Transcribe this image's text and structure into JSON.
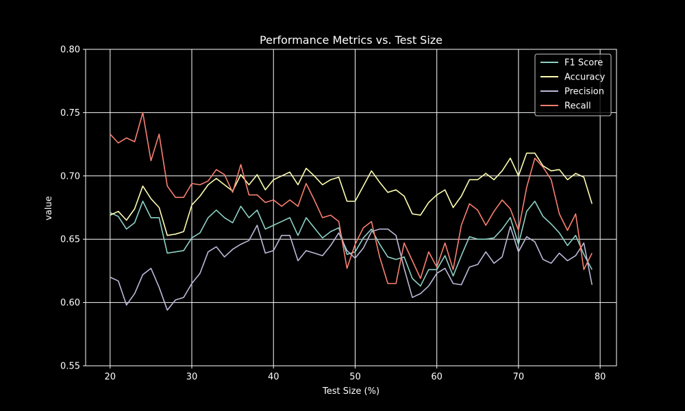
{
  "chart_data": {
    "type": "line",
    "title": "Performance Metrics vs. Test Size",
    "xlabel": "Test Size (%)",
    "ylabel": "value",
    "xlim": [
      17,
      82
    ],
    "ylim": [
      0.55,
      0.8
    ],
    "xticks": [
      20,
      30,
      40,
      50,
      60,
      70,
      80
    ],
    "yticks": [
      0.55,
      0.6,
      0.65,
      0.7,
      0.75,
      0.8
    ],
    "ytick_labels": [
      "0.55",
      "0.60",
      "0.65",
      "0.70",
      "0.75",
      "0.80"
    ],
    "grid": true,
    "legend_position": "top-right",
    "x": [
      20,
      21,
      22,
      23,
      24,
      25,
      26,
      27,
      28,
      29,
      30,
      31,
      32,
      33,
      34,
      35,
      36,
      37,
      38,
      39,
      40,
      41,
      42,
      43,
      44,
      45,
      46,
      47,
      48,
      49,
      50,
      51,
      52,
      53,
      54,
      55,
      56,
      57,
      58,
      59,
      60,
      61,
      62,
      63,
      64,
      65,
      66,
      67,
      68,
      69,
      70,
      71,
      72,
      73,
      74,
      75,
      76,
      77,
      78,
      79
    ],
    "series": [
      {
        "name": "F1 Score",
        "color": "#8dd3c7",
        "values": [
          0.671,
          0.668,
          0.658,
          0.663,
          0.68,
          0.667,
          0.667,
          0.639,
          0.64,
          0.641,
          0.651,
          0.655,
          0.667,
          0.673,
          0.667,
          0.663,
          0.676,
          0.667,
          0.673,
          0.658,
          0.661,
          0.664,
          0.667,
          0.653,
          0.667,
          0.659,
          0.651,
          0.656,
          0.659,
          0.638,
          0.64,
          0.651,
          0.658,
          0.646,
          0.636,
          0.634,
          0.636,
          0.619,
          0.613,
          0.626,
          0.626,
          0.637,
          0.621,
          0.637,
          0.652,
          0.65,
          0.65,
          0.651,
          0.658,
          0.667,
          0.646,
          0.672,
          0.68,
          0.668,
          0.662,
          0.655,
          0.645,
          0.653,
          0.638,
          0.626
        ]
      },
      {
        "name": "Accuracy",
        "color": "#ffffb3",
        "values": [
          0.669,
          0.672,
          0.665,
          0.674,
          0.692,
          0.682,
          0.675,
          0.653,
          0.654,
          0.656,
          0.677,
          0.684,
          0.693,
          0.698,
          0.693,
          0.688,
          0.701,
          0.693,
          0.701,
          0.689,
          0.697,
          0.7,
          0.703,
          0.693,
          0.706,
          0.7,
          0.693,
          0.697,
          0.699,
          0.68,
          0.68,
          0.692,
          0.704,
          0.695,
          0.687,
          0.689,
          0.684,
          0.67,
          0.669,
          0.679,
          0.685,
          0.689,
          0.675,
          0.684,
          0.697,
          0.697,
          0.702,
          0.697,
          0.704,
          0.714,
          0.7,
          0.718,
          0.718,
          0.708,
          0.704,
          0.705,
          0.697,
          0.702,
          0.699,
          0.678
        ]
      },
      {
        "name": "Precision",
        "color": "#bebada",
        "values": [
          0.62,
          0.617,
          0.598,
          0.607,
          0.622,
          0.627,
          0.612,
          0.594,
          0.602,
          0.604,
          0.615,
          0.623,
          0.64,
          0.644,
          0.636,
          0.642,
          0.646,
          0.649,
          0.661,
          0.639,
          0.641,
          0.653,
          0.653,
          0.633,
          0.641,
          0.639,
          0.637,
          0.645,
          0.655,
          0.641,
          0.635,
          0.643,
          0.656,
          0.658,
          0.658,
          0.653,
          0.627,
          0.604,
          0.607,
          0.613,
          0.623,
          0.627,
          0.615,
          0.614,
          0.628,
          0.63,
          0.64,
          0.631,
          0.636,
          0.66,
          0.64,
          0.652,
          0.648,
          0.634,
          0.631,
          0.639,
          0.633,
          0.637,
          0.647,
          0.614
        ]
      },
      {
        "name": "Recall",
        "color": "#fb8072",
        "values": [
          0.733,
          0.726,
          0.73,
          0.727,
          0.75,
          0.712,
          0.733,
          0.692,
          0.683,
          0.683,
          0.694,
          0.693,
          0.696,
          0.705,
          0.701,
          0.687,
          0.709,
          0.685,
          0.685,
          0.679,
          0.681,
          0.676,
          0.681,
          0.676,
          0.694,
          0.681,
          0.667,
          0.669,
          0.664,
          0.627,
          0.646,
          0.659,
          0.664,
          0.636,
          0.615,
          0.615,
          0.647,
          0.633,
          0.619,
          0.64,
          0.628,
          0.647,
          0.626,
          0.661,
          0.678,
          0.673,
          0.661,
          0.672,
          0.681,
          0.674,
          0.657,
          0.691,
          0.714,
          0.707,
          0.697,
          0.67,
          0.657,
          0.67,
          0.626,
          0.639
        ]
      }
    ]
  }
}
